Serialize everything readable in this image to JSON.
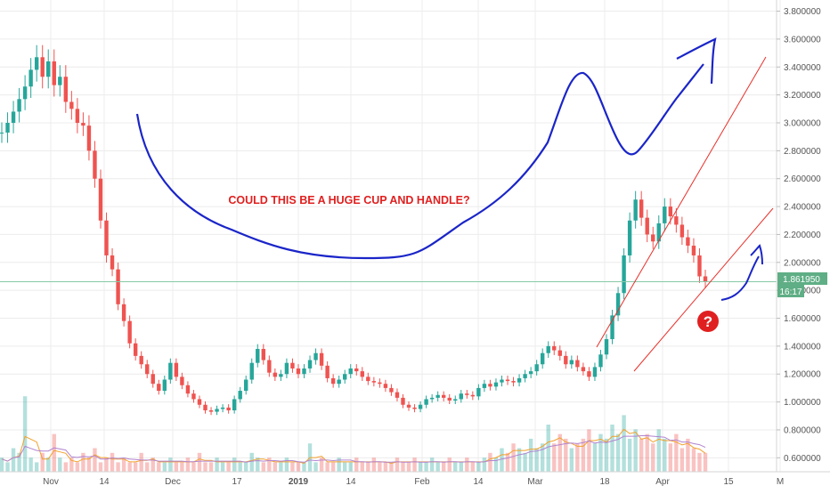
{
  "chart_data": {
    "type": "line",
    "title": "",
    "xlabel": "",
    "ylabel": "",
    "x_ticks": [
      "Nov",
      "14",
      "Dec",
      "17",
      "2019",
      "14",
      "Feb",
      "14",
      "Mar",
      "18",
      "Apr",
      "15",
      "M"
    ],
    "y_ticks": [
      "0.600000",
      "0.800000",
      "1.000000",
      "1.200000",
      "1.400000",
      "1.600000",
      "1.800000",
      "2.000000",
      "2.200000",
      "2.400000",
      "2.600000",
      "2.800000",
      "3.000000",
      "3.200000",
      "3.400000",
      "3.600000",
      "3.800000"
    ],
    "ylim": [
      0.5,
      3.88
    ],
    "grid": true,
    "scale": "linear",
    "last_price": 1.86195,
    "price_label": "1.861950",
    "countdown": "16:17",
    "annotation": "COULD THIS BE A HUGE CUP AND HANDLE?",
    "question_mark": "?",
    "series": [
      {
        "values": [
          2.93,
          3.0,
          3.08,
          3.17,
          3.26,
          3.38,
          3.47,
          3.33,
          3.44,
          3.27,
          3.33,
          3.15,
          3.1,
          3.0,
          2.98,
          2.8,
          2.6,
          2.3,
          2.05,
          1.95,
          1.7,
          1.58,
          1.42,
          1.33,
          1.27,
          1.2,
          1.13,
          1.08,
          1.16,
          1.28,
          1.18,
          1.12,
          1.06,
          1.02,
          0.98,
          0.94,
          0.93,
          0.95,
          0.96,
          0.94,
          1.02,
          1.08,
          1.16,
          1.28,
          1.38,
          1.3,
          1.21,
          1.18,
          1.2,
          1.28,
          1.24,
          1.2,
          1.24,
          1.3,
          1.35,
          1.26,
          1.17,
          1.13,
          1.16,
          1.2,
          1.24,
          1.22,
          1.18,
          1.15,
          1.14,
          1.13,
          1.1,
          1.07,
          1.03,
          0.98,
          0.96,
          0.95,
          0.98,
          1.02,
          1.03,
          1.05,
          1.03,
          1.01,
          1.02,
          1.06,
          1.05,
          1.04,
          1.1,
          1.13,
          1.11,
          1.14,
          1.16,
          1.15,
          1.14,
          1.17,
          1.2,
          1.22,
          1.27,
          1.35,
          1.4,
          1.37,
          1.33,
          1.27,
          1.3,
          1.25,
          1.22,
          1.18,
          1.25,
          1.34,
          1.45,
          1.62,
          1.78,
          2.05,
          2.3,
          2.45,
          2.32,
          2.2,
          2.15,
          2.28,
          2.4,
          2.33,
          2.27,
          2.18,
          2.12,
          2.05,
          1.9,
          1.86
        ],
        "volume": [
          0.03,
          0.02,
          0.05,
          0.04,
          0.16,
          0.03,
          0.02,
          0.04,
          0.03,
          0.08,
          0.03,
          0.02,
          0.03,
          0.02,
          0.04,
          0.03,
          0.05,
          0.02,
          0.03,
          0.04,
          0.02,
          0.03,
          0.02,
          0.02,
          0.04,
          0.02,
          0.03,
          0.02,
          0.02,
          0.03,
          0.02,
          0.02,
          0.03,
          0.02,
          0.04,
          0.02,
          0.02,
          0.03,
          0.02,
          0.02,
          0.03,
          0.02,
          0.02,
          0.04,
          0.03,
          0.02,
          0.03,
          0.02,
          0.02,
          0.03,
          0.02,
          0.02,
          0.02,
          0.06,
          0.02,
          0.03,
          0.02,
          0.02,
          0.03,
          0.02,
          0.02,
          0.03,
          0.02,
          0.02,
          0.03,
          0.02,
          0.02,
          0.02,
          0.03,
          0.02,
          0.02,
          0.03,
          0.02,
          0.02,
          0.03,
          0.02,
          0.02,
          0.03,
          0.02,
          0.02,
          0.03,
          0.02,
          0.02,
          0.03,
          0.04,
          0.03,
          0.05,
          0.04,
          0.06,
          0.05,
          0.04,
          0.07,
          0.05,
          0.06,
          0.1,
          0.06,
          0.08,
          0.07,
          0.05,
          0.06,
          0.07,
          0.09,
          0.06,
          0.08,
          0.07,
          0.1,
          0.08,
          0.12,
          0.07,
          0.09,
          0.07,
          0.08,
          0.06,
          0.09,
          0.07,
          0.06,
          0.08,
          0.05,
          0.07,
          0.05,
          0.04,
          0.04
        ]
      }
    ]
  },
  "colors": {
    "up": "#26a69a",
    "down": "#ef5350",
    "price_line": "#88c9a8",
    "price_tag": "#5fae85",
    "annotation_text": "#e02020",
    "arrow": "#1a25c8",
    "channel": "#e8302a",
    "question_bg": "#e02020",
    "grid": "#ececec",
    "axis_text": "#555555",
    "volume_line_a": "#f2a12b",
    "volume_line_b": "#b184d1"
  }
}
